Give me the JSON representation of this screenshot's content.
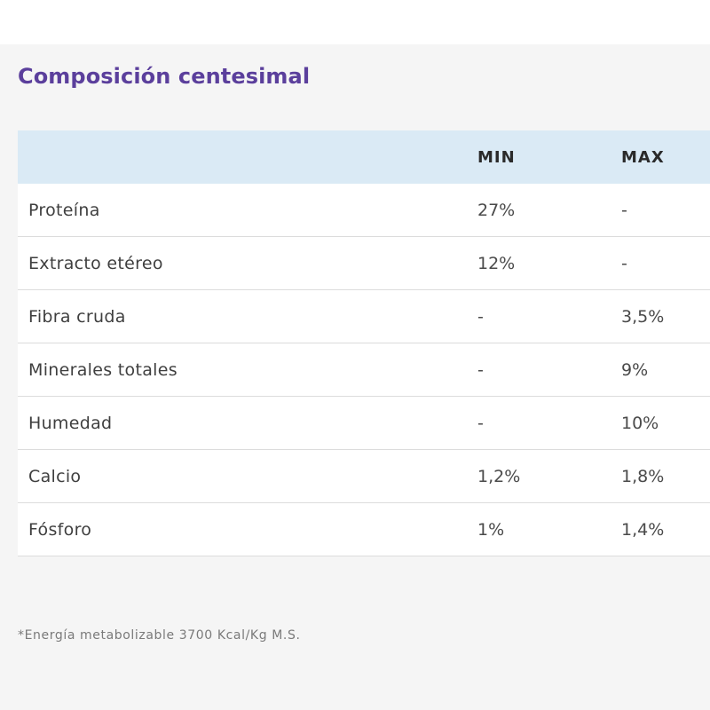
{
  "section": {
    "title": "Composición centesimal"
  },
  "table": {
    "columns": [
      "",
      "MIN",
      "MAX"
    ],
    "rows": [
      {
        "label": "Proteína",
        "min": "27%",
        "max": "-"
      },
      {
        "label": "Extracto etéreo",
        "min": "12%",
        "max": "-"
      },
      {
        "label": "Fibra cruda",
        "min": "-",
        "max": "3,5%"
      },
      {
        "label": "Minerales totales",
        "min": "-",
        "max": "9%"
      },
      {
        "label": "Humedad",
        "min": "-",
        "max": "10%"
      },
      {
        "label": "Calcio",
        "min": "1,2%",
        "max": "1,8%"
      },
      {
        "label": "Fósforo",
        "min": "1%",
        "max": "1,4%"
      }
    ]
  },
  "footnote": "*Energía metabolizable 3700 Kcal/Kg M.S.",
  "colors": {
    "title": "#5b3f9c",
    "header_background": "#daeaf5",
    "page_background": "#f5f5f5",
    "row_background": "#ffffff"
  }
}
